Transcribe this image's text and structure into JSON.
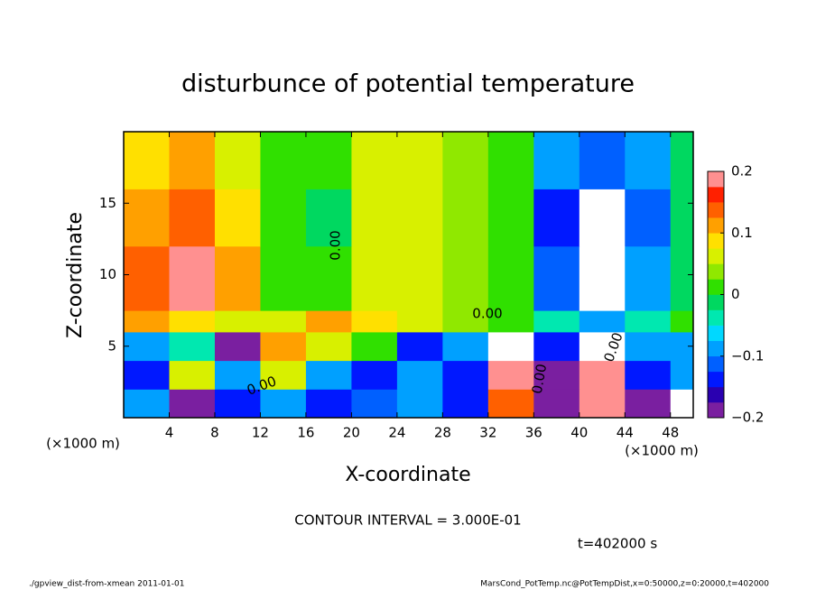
{
  "chart_data": {
    "type": "heatmap",
    "title": "disturbunce of potential temperature",
    "xlabel": "X-coordinate",
    "ylabel": "Z-coordinate",
    "xunit": "(×1000 m)",
    "xbins": [
      0,
      4,
      8,
      12,
      16,
      20,
      24,
      28,
      32,
      36,
      40,
      44,
      48,
      50
    ],
    "ybins": [
      0,
      2,
      4,
      6,
      7.5,
      12,
      16,
      20
    ],
    "values": [
      [
        -0.1,
        -0.2,
        -0.15,
        -0.1,
        -0.15,
        -0.12,
        -0.1,
        -0.15,
        0.15,
        -0.2,
        0.2,
        -0.2,
        -0.25
      ],
      [
        -0.15,
        0.05,
        -0.1,
        0.05,
        -0.1,
        -0.15,
        -0.1,
        -0.15,
        0.2,
        -0.2,
        0.2,
        -0.15,
        -0.1
      ],
      [
        -0.1,
        -0.05,
        -0.2,
        0.1,
        0.05,
        0,
        -0.15,
        -0.1,
        -0.25,
        -0.15,
        -0.3,
        -0.1,
        -0.08
      ],
      [
        0.1,
        0.08,
        0.05,
        0.06,
        0.1,
        0.08,
        0.05,
        0.03,
        0,
        -0.05,
        -0.08,
        -0.05,
        0.02
      ],
      [
        0.15,
        0.18,
        0.1,
        0.02,
        0.02,
        0.06,
        0.06,
        0.04,
        0,
        -0.12,
        -0.3,
        -0.1,
        -0.01
      ],
      [
        0.12,
        0.15,
        0.08,
        0,
        -0.01,
        0.05,
        0.06,
        0.04,
        0,
        -0.15,
        -0.25,
        -0.12,
        -0.02
      ],
      [
        0.08,
        0.12,
        0.06,
        0,
        0,
        0.05,
        0.05,
        0.04,
        0.01,
        -0.1,
        -0.12,
        -0.08,
        -0.02
      ]
    ],
    "xlim": [
      0,
      50
    ],
    "ylim": [
      0,
      20
    ],
    "xticks": [
      4,
      8,
      12,
      16,
      20,
      24,
      28,
      32,
      36,
      40,
      44,
      48
    ],
    "yticks": [
      5,
      10,
      15
    ],
    "zlim": [
      -0.2,
      0.2
    ],
    "zticks": [
      {
        "value": -0.2,
        "label": "−0.2"
      },
      {
        "value": -0.1,
        "label": "−0.1"
      },
      0,
      0.1,
      0.2
    ],
    "colorscale": [
      "#7a1fa0",
      "#2a00b0",
      "#0018ff",
      "#0060ff",
      "#00a0ff",
      "#00d8ff",
      "#00e8b0",
      "#00d860",
      "#30e000",
      "#90e800",
      "#d8f000",
      "#ffe000",
      "#ffa000",
      "#ff6000",
      "#ff2000",
      "#ff9090"
    ],
    "contour_label": "0.00",
    "contour_interval": "CONTOUR INTERVAL = 3.000E-01",
    "time": "t=402000 s",
    "footer_left": "./gpview_dist-from-xmean  2011-01-01",
    "footer_right": "MarsCond_PotTemp.nc@PotTempDist,x=0:50000,z=0:20000,t=402000"
  }
}
